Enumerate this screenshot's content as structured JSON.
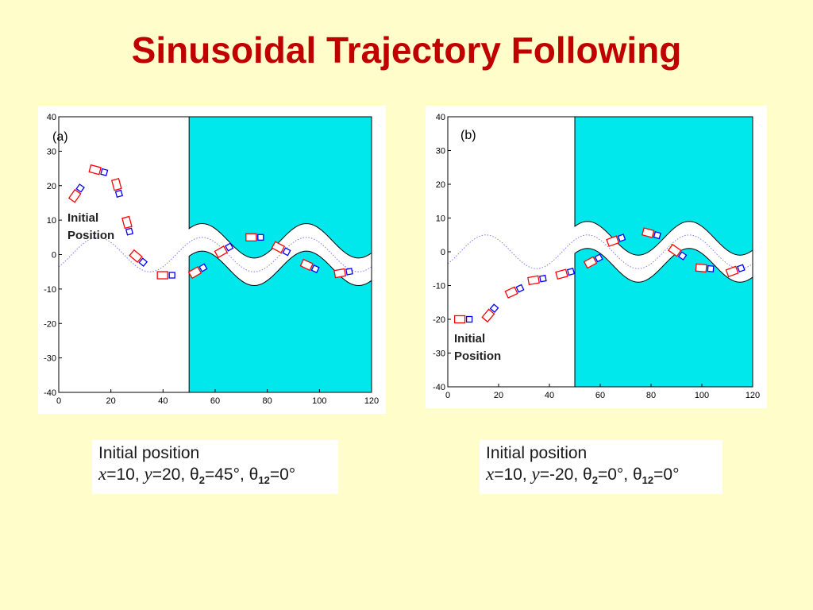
{
  "slide": {
    "title": "Sinusoidal Trajectory Following"
  },
  "colors": {
    "title": "#C00000",
    "background": "#FFFDC9",
    "obstacle": "#00E8EC",
    "trailer": "#FF0000",
    "tractor": "#0000FF",
    "reference": "#7B7BFF"
  },
  "chart_data": [
    {
      "type": "scatter",
      "panel_label": "(a)",
      "xlim": [
        0,
        120
      ],
      "ylim": [
        -40,
        40
      ],
      "x_ticks": [
        0,
        20,
        40,
        60,
        80,
        100,
        120
      ],
      "y_ticks": [
        40,
        30,
        20,
        10,
        0,
        -10,
        -20,
        -30,
        -40
      ],
      "reference_path": "y = 5*sin(2*pi*(x-5)/40)",
      "corridor_start_x": 50,
      "corridor_half_width": 4,
      "annotation": [
        "Initial",
        "Position"
      ],
      "vehicle_poses": [
        {
          "x": 8,
          "y": 19,
          "theta": 55
        },
        {
          "x": 17,
          "y": 24,
          "theta": -15
        },
        {
          "x": 23,
          "y": 18,
          "theta": -75
        },
        {
          "x": 27,
          "y": 7,
          "theta": -75
        },
        {
          "x": 32,
          "y": -2,
          "theta": -40
        },
        {
          "x": 43,
          "y": -6,
          "theta": 0
        },
        {
          "x": 55,
          "y": -4,
          "theta": 30
        },
        {
          "x": 65,
          "y": 2,
          "theta": 30
        },
        {
          "x": 77,
          "y": 5,
          "theta": 0
        },
        {
          "x": 87,
          "y": 1,
          "theta": -28
        },
        {
          "x": 98,
          "y": -4,
          "theta": -25
        },
        {
          "x": 111,
          "y": -5,
          "theta": 10
        }
      ],
      "caption": {
        "heading": "Initial position",
        "x_label": "x",
        "x_value": "=10, ",
        "y_label": "y",
        "y_value": "=20, ",
        "t2_symbol": "θ",
        "t2_sub": "2",
        "t2_value": "=45°, ",
        "t12_symbol": "θ",
        "t12_sub": "12",
        "t12_value": "=0°"
      }
    },
    {
      "type": "scatter",
      "panel_label": "(b)",
      "xlim": [
        0,
        120
      ],
      "ylim": [
        -40,
        40
      ],
      "x_ticks": [
        0,
        20,
        40,
        60,
        80,
        100,
        120
      ],
      "y_ticks": [
        40,
        30,
        20,
        10,
        0,
        -10,
        -20,
        -30,
        -40
      ],
      "reference_path": "y = 5*sin(2*pi*(x-5)/40)",
      "corridor_start_x": 50,
      "corridor_half_width": 4,
      "annotation": [
        "Initial",
        "Position"
      ],
      "vehicle_poses": [
        {
          "x": 8,
          "y": -20,
          "theta": 0
        },
        {
          "x": 18,
          "y": -17,
          "theta": 50
        },
        {
          "x": 28,
          "y": -11,
          "theta": 25
        },
        {
          "x": 37,
          "y": -8,
          "theta": 10
        },
        {
          "x": 48,
          "y": -6,
          "theta": 15
        },
        {
          "x": 59,
          "y": -2,
          "theta": 28
        },
        {
          "x": 68,
          "y": 4,
          "theta": 20
        },
        {
          "x": 82,
          "y": 5,
          "theta": -15
        },
        {
          "x": 92,
          "y": -1,
          "theta": -35
        },
        {
          "x": 103,
          "y": -5,
          "theta": -5
        },
        {
          "x": 115,
          "y": -5,
          "theta": 20
        }
      ],
      "caption": {
        "heading": "Initial position",
        "x_label": "x",
        "x_value": "=10, ",
        "y_label": "y",
        "y_value": "=-20, ",
        "t2_symbol": "θ",
        "t2_sub": "2",
        "t2_value": "=0°, ",
        "t12_symbol": "θ",
        "t12_sub": "12",
        "t12_value": "=0°"
      }
    }
  ]
}
